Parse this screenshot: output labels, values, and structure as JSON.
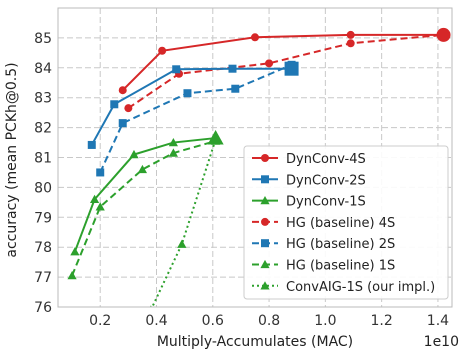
{
  "chart_data": {
    "type": "line",
    "xlabel": "Multiply-Accumulates (MAC)",
    "ylabel": "accuracy (mean PCKh@0.5)",
    "x_multiplier": "1e10",
    "xlim": [
      0.05,
      1.45
    ],
    "ylim": [
      76,
      86
    ],
    "xticks": [
      "0.2",
      "0.4",
      "0.6",
      "0.8",
      "1.0",
      "1.2",
      "1.4"
    ],
    "yticks": [
      "76",
      "77",
      "78",
      "79",
      "80",
      "81",
      "82",
      "83",
      "84",
      "85"
    ],
    "grid": true,
    "legend_position": "lower-right",
    "series": [
      {
        "name": "DynConv-4S",
        "color": "#d62728",
        "style": "solid",
        "marker": "circle",
        "x": [
          0.28,
          0.42,
          0.75,
          1.09,
          1.42
        ],
        "y": [
          83.25,
          84.57,
          85.02,
          85.1,
          85.1
        ],
        "big_last": true
      },
      {
        "name": "DynConv-2S",
        "color": "#1f77b4",
        "style": "solid",
        "marker": "square",
        "x": [
          0.17,
          0.25,
          0.47,
          0.67,
          0.88
        ],
        "y": [
          81.42,
          82.78,
          83.95,
          83.97,
          83.97
        ],
        "big_last": true
      },
      {
        "name": "DynConv-1S",
        "color": "#2ca02c",
        "style": "solid",
        "marker": "triangle",
        "x": [
          0.11,
          0.18,
          0.32,
          0.46,
          0.61
        ],
        "y": [
          77.85,
          79.6,
          81.1,
          81.5,
          81.65
        ],
        "big_last": true
      },
      {
        "name": "HG (baseline) 4S",
        "color": "#d62728",
        "style": "dashed",
        "marker": "circle",
        "x": [
          0.3,
          0.48,
          0.8,
          1.09,
          1.42
        ],
        "y": [
          82.65,
          83.8,
          84.15,
          84.82,
          85.1
        ],
        "big_last": false
      },
      {
        "name": "HG (baseline) 2S",
        "color": "#1f77b4",
        "style": "dashed",
        "marker": "square",
        "x": [
          0.2,
          0.28,
          0.51,
          0.68,
          0.88
        ],
        "y": [
          80.5,
          82.15,
          83.15,
          83.3,
          84.1
        ],
        "big_last": false
      },
      {
        "name": "HG (baseline) 1S",
        "color": "#2ca02c",
        "style": "dashed",
        "marker": "triangle",
        "x": [
          0.1,
          0.2,
          0.35,
          0.46,
          0.61
        ],
        "y": [
          77.05,
          79.35,
          80.6,
          81.15,
          81.55
        ],
        "big_last": false
      },
      {
        "name": "ConvAIG-1S (our impl.)",
        "color": "#2ca02c",
        "style": "dotted",
        "marker": "triangle",
        "x": [
          0.38,
          0.49,
          0.61
        ],
        "y": [
          75.9,
          78.1,
          81.6
        ],
        "big_last": false
      }
    ]
  }
}
